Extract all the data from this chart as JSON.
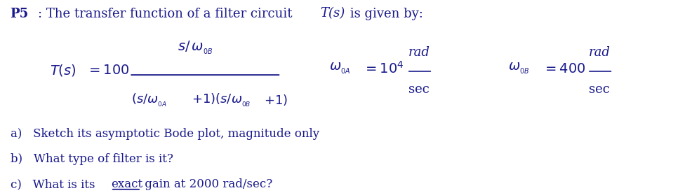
{
  "bg_color": "#ffffff",
  "text_color": "#1a1a8c",
  "font_size_title": 13,
  "font_size_body": 12,
  "font_size_formula": 13,
  "font_size_small": 10,
  "item_a": "a)   Sketch its asymptotic Bode plot, magnitude only",
  "item_b": "b)   What type of filter is it?",
  "item_c_pre": "c)   What is its ",
  "item_c_underline": "exact",
  "item_c_post": " gain at 2000 rad/sec?"
}
